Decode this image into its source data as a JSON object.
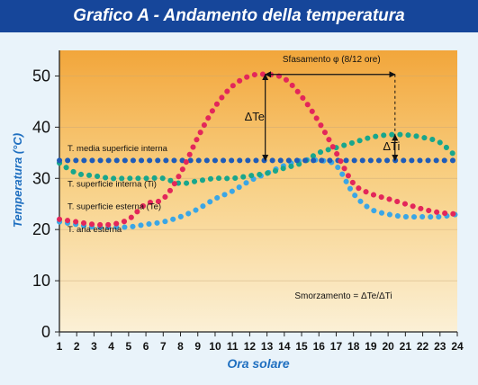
{
  "header": {
    "title": "Grafico A - Andamento della temperatura"
  },
  "colors": {
    "header_bg": "#16469a",
    "axis_label": "#1f6fc0",
    "external_surface": "#e3265a",
    "internal_surface": "#18a68c",
    "internal_mean": "#1f5cb8",
    "external_air": "#3aa6e6"
  },
  "chart_data": {
    "type": "line",
    "title": "Grafico A - Andamento della temperatura",
    "xlabel": "Ora solare",
    "ylabel": "Temperatura (°C)",
    "xlim": [
      1,
      24
    ],
    "ylim": [
      0,
      55
    ],
    "x_ticks": [
      1,
      2,
      3,
      4,
      5,
      6,
      7,
      8,
      9,
      10,
      11,
      12,
      13,
      14,
      15,
      16,
      17,
      18,
      19,
      20,
      21,
      22,
      23,
      24
    ],
    "y_ticks": [
      0,
      10,
      20,
      30,
      40,
      50
    ],
    "x": [
      1,
      2,
      3,
      4,
      5,
      6,
      7,
      8,
      9,
      10,
      11,
      12,
      13,
      14,
      15,
      16,
      17,
      18,
      19,
      20,
      21,
      22,
      23,
      24
    ],
    "series": [
      {
        "name": "T. superficie esterna (Te)",
        "color": "#e3265a",
        "values": [
          22,
          21.5,
          21,
          21,
          22,
          25,
          26,
          31,
          38,
          44,
          48,
          50,
          50.3,
          49.5,
          46,
          41,
          35,
          29,
          27,
          26,
          25,
          24,
          23.3,
          23
        ]
      },
      {
        "name": "T. superficie interna (Ti)",
        "color": "#18a68c",
        "values": [
          33,
          31,
          30.5,
          30,
          30,
          30,
          30,
          29,
          29.5,
          30,
          30,
          30.5,
          31,
          32,
          33,
          35,
          36,
          37,
          38,
          38.5,
          38.5,
          38,
          37,
          34
        ]
      },
      {
        "name": "T. media superficie interna",
        "color": "#1f5cb8",
        "values": [
          33.5,
          33.5,
          33.5,
          33.5,
          33.5,
          33.5,
          33.5,
          33.5,
          33.5,
          33.5,
          33.5,
          33.5,
          33.5,
          33.5,
          33.5,
          33.5,
          33.5,
          33.5,
          33.5,
          33.5,
          33.5,
          33.5,
          33.5,
          33.5
        ]
      },
      {
        "name": "T. aria esterna",
        "color": "#3aa6e6",
        "values": [
          21.5,
          21,
          20.5,
          20.5,
          20.5,
          21,
          21.5,
          22.5,
          24,
          26,
          27.5,
          29.5,
          31,
          32.5,
          33.5,
          33.5,
          32.5,
          27,
          24,
          23,
          22.5,
          22.5,
          22.5,
          23
        ]
      }
    ],
    "annotations": {
      "phase_shift": "Sfasamento φ (8/12 ore)",
      "delta_te": "ΔTe",
      "delta_ti": "ΔTi",
      "damping": "Smorzamento = ΔTe/ΔTi"
    },
    "legend_placement": "inline-labels-left"
  }
}
